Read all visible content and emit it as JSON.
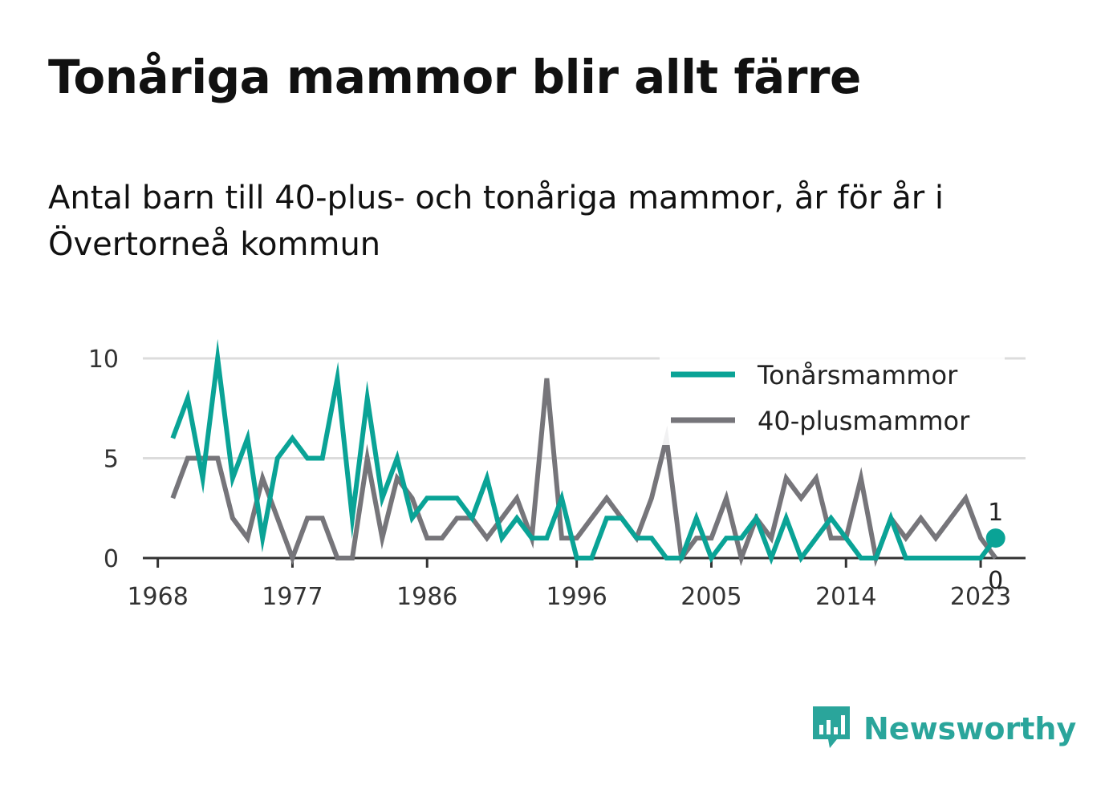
{
  "header": {
    "title": "Tonåriga mammor blir allt färre",
    "subtitle": "Antal barn till 40-plus- och tonåriga mammor, år för år i Övertorneå kommun"
  },
  "brand": {
    "name": "Newsworthy",
    "icon": "newsworthy-logo-icon",
    "color": "#2aa59b"
  },
  "chart_data": {
    "type": "line",
    "title": "",
    "xlabel": "",
    "ylabel": "",
    "xlim": [
      1967,
      2026
    ],
    "ylim": [
      0,
      10
    ],
    "x_ticks": [
      1968,
      1977,
      1986,
      1996,
      2005,
      2014,
      2023
    ],
    "y_ticks": [
      0,
      5,
      10
    ],
    "grid": true,
    "legend": "top-right",
    "x": [
      1969,
      1970,
      1971,
      1972,
      1973,
      1974,
      1975,
      1976,
      1977,
      1978,
      1979,
      1980,
      1981,
      1982,
      1983,
      1984,
      1985,
      1986,
      1987,
      1988,
      1989,
      1990,
      1991,
      1992,
      1993,
      1994,
      1995,
      1996,
      1997,
      1998,
      1999,
      2000,
      2001,
      2002,
      2003,
      2004,
      2005,
      2006,
      2007,
      2008,
      2009,
      2010,
      2011,
      2012,
      2013,
      2014,
      2015,
      2016,
      2017,
      2018,
      2019,
      2020,
      2021,
      2022,
      2023,
      2024
    ],
    "series": [
      {
        "name": "Tonårsmammor",
        "color": "#0aa396",
        "values": [
          6,
          8,
          4,
          10,
          4,
          6,
          1,
          5,
          6,
          5,
          5,
          9,
          2,
          8,
          3,
          5,
          2,
          3,
          3,
          3,
          2,
          4,
          1,
          2,
          1,
          1,
          3,
          0,
          0,
          2,
          2,
          1,
          1,
          0,
          0,
          2,
          0,
          1,
          1,
          2,
          0,
          2,
          0,
          1,
          2,
          1,
          0,
          0,
          2,
          0,
          0,
          0,
          0,
          0,
          0,
          1
        ],
        "end_label": "1"
      },
      {
        "name": "40-plusmammor",
        "color": "#76757a",
        "values": [
          3,
          5,
          5,
          5,
          2,
          1,
          4,
          2,
          0,
          2,
          2,
          0,
          0,
          5,
          1,
          4,
          3,
          1,
          1,
          2,
          2,
          1,
          2,
          3,
          1,
          9,
          1,
          1,
          2,
          3,
          2,
          1,
          3,
          6,
          0,
          1,
          1,
          3,
          0,
          2,
          1,
          4,
          3,
          4,
          1,
          1,
          4,
          0,
          2,
          1,
          2,
          1,
          2,
          3,
          1,
          0
        ],
        "end_label": "0"
      }
    ]
  }
}
